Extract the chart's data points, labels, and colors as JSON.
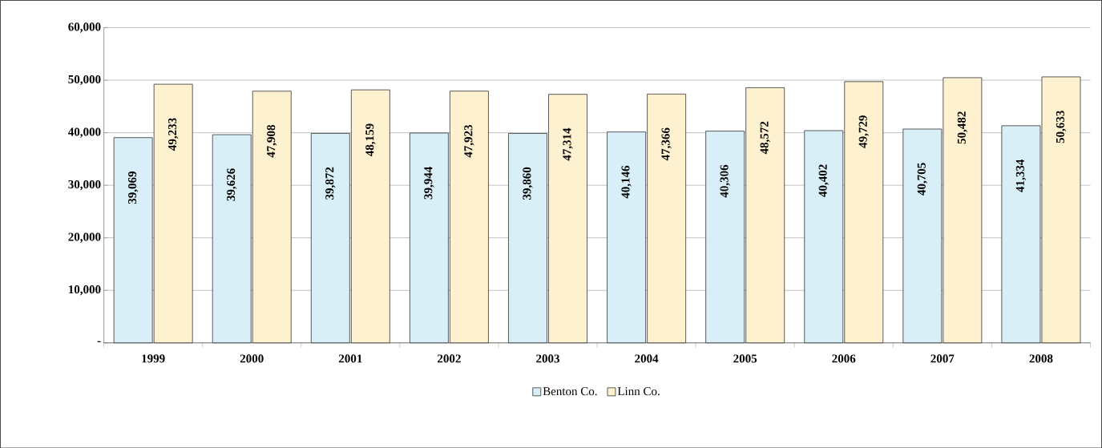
{
  "chart_data": {
    "type": "bar",
    "categories": [
      "1999",
      "2000",
      "2001",
      "2002",
      "2003",
      "2004",
      "2005",
      "2006",
      "2007",
      "2008"
    ],
    "series": [
      {
        "name": "Benton Co.",
        "color": "#d8eff7",
        "values": [
          39069,
          39626,
          39872,
          39944,
          39860,
          40146,
          40306,
          40402,
          40705,
          41334
        ],
        "value_labels": [
          "39,069",
          "39,626",
          "39,872",
          "39,944",
          "39,860",
          "40,146",
          "40,306",
          "40,402",
          "40,705",
          "41,334"
        ]
      },
      {
        "name": "Linn Co.",
        "color": "#fdf1cf",
        "values": [
          49233,
          47908,
          48159,
          47923,
          47314,
          47366,
          48572,
          49729,
          50482,
          50633
        ],
        "value_labels": [
          "49,233",
          "47,908",
          "48,159",
          "47,923",
          "47,314",
          "47,366",
          "48,572",
          "49,729",
          "50,482",
          "50,633"
        ]
      }
    ],
    "ylim": [
      0,
      60000
    ],
    "yticks": [
      {
        "value": 0,
        "label": "-"
      },
      {
        "value": 10000,
        "label": "10,000"
      },
      {
        "value": 20000,
        "label": "20,000"
      },
      {
        "value": 30000,
        "label": "30,000"
      },
      {
        "value": 40000,
        "label": "40,000"
      },
      {
        "value": 50000,
        "label": "50,000"
      },
      {
        "value": 60000,
        "label": "60,000"
      }
    ],
    "grid": "y",
    "legend": "bottom"
  }
}
